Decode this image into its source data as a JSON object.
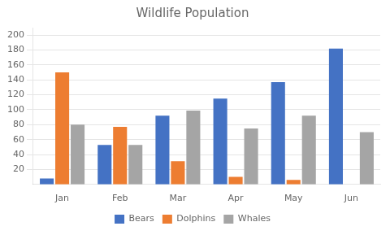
{
  "chart_data": {
    "type": "bar",
    "title": "Wildlife Population",
    "categories": [
      "Jan",
      "Feb",
      "Mar",
      "Apr",
      "May",
      "Jun"
    ],
    "series": [
      {
        "name": "Bears",
        "color": "#4472C4",
        "values": [
          8,
          53,
          92,
          115,
          137,
          182
        ]
      },
      {
        "name": "Dolphins",
        "color": "#ED7D31",
        "values": [
          150,
          77,
          31,
          10,
          6,
          0
        ]
      },
      {
        "name": "Whales",
        "color": "#A5A5A5",
        "values": [
          80,
          53,
          99,
          75,
          92,
          70
        ]
      }
    ],
    "ylim": [
      0,
      210
    ],
    "yticks": [
      20,
      40,
      60,
      80,
      100,
      120,
      140,
      160,
      180,
      200
    ],
    "grid": true,
    "legend": "bottom"
  }
}
